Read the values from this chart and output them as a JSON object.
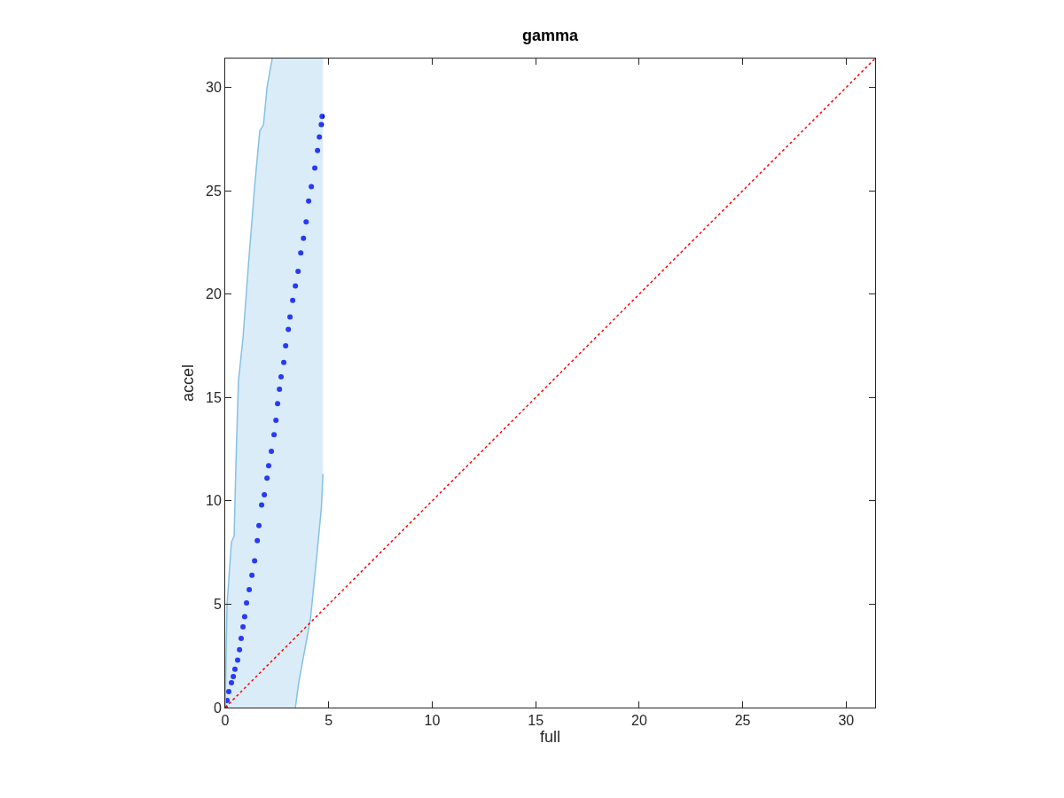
{
  "chart_data": {
    "type": "scatter",
    "title": "gamma",
    "xlabel": "full",
    "ylabel": "accel",
    "xlim": [
      0,
      31.4
    ],
    "ylim": [
      0,
      31.4
    ],
    "xticks": [
      0,
      5,
      10,
      15,
      20,
      25,
      30
    ],
    "yticks": [
      0,
      5,
      10,
      15,
      20,
      25,
      30
    ],
    "series": [
      {
        "type": "scatter",
        "marker": "circle",
        "color": "#0000ff",
        "x": [
          0,
          0.09,
          0.17,
          0.3,
          0.39,
          0.47,
          0.6,
          0.69,
          0.77,
          0.86,
          0.94,
          1.03,
          1.16,
          1.29,
          1.42,
          1.55,
          1.63,
          1.76,
          1.89,
          2.02,
          2.1,
          2.23,
          2.36,
          2.45,
          2.53,
          2.62,
          2.7,
          2.83,
          2.92,
          3.05,
          3.13,
          3.26,
          3.39,
          3.52,
          3.65,
          3.78,
          3.91,
          4.03,
          4.16,
          4.33,
          4.46,
          4.55,
          4.64,
          4.68
        ],
        "values": [
          0,
          0.34,
          0.77,
          1.2,
          1.5,
          1.85,
          2.3,
          2.8,
          3.35,
          3.9,
          4.4,
          5.06,
          5.7,
          6.4,
          7.1,
          8.07,
          8.8,
          9.8,
          10.3,
          11.1,
          11.7,
          12.4,
          13.2,
          13.9,
          14.7,
          15.4,
          16.0,
          16.7,
          17.5,
          18.3,
          18.9,
          19.7,
          20.4,
          21.1,
          22.0,
          22.7,
          23.5,
          24.5,
          25.2,
          26.1,
          26.95,
          27.6,
          28.2,
          28.6
        ]
      },
      {
        "type": "line",
        "color": "#85c1e6",
        "x": [
          0,
          0.09,
          0.3,
          0.43,
          0.52,
          0.64,
          0.86,
          1.12,
          1.42,
          1.67,
          1.85,
          2.02,
          2.27,
          2.6,
          3.0,
          3.39,
          3.55,
          4.12,
          4.45,
          4.65,
          4.72
        ],
        "values": [
          null,
          null,
          null,
          null,
          null,
          null,
          null,
          null,
          null,
          null,
          null,
          null,
          null,
          null,
          null,
          null,
          null,
          null,
          null,
          null,
          null
        ],
        "lower": [
          0,
          0,
          0,
          0,
          0,
          0,
          0,
          0,
          0,
          0,
          0,
          0,
          0,
          0,
          0,
          0,
          1.2,
          4.3,
          7.6,
          9.7,
          11.3
        ],
        "upper": [
          0,
          5.0,
          8.0,
          8.3,
          11.9,
          15.8,
          17.9,
          21.4,
          25.2,
          27.9,
          28.2,
          30.0,
          31.4,
          31.4,
          31.4,
          31.4,
          31.4,
          31.4,
          31.4,
          31.4,
          31.4
        ]
      },
      {
        "type": "line",
        "color": "#85c1e6",
        "marker": "none",
        "x": [
          0,
          0.04,
          0.09,
          0.3,
          0.43,
          0.52,
          0.64,
          0.86,
          1.12,
          1.42,
          1.67,
          1.85,
          2.02,
          2.27
        ],
        "values": [
          0,
          2.5,
          5.0,
          8.0,
          8.3,
          11.9,
          15.8,
          17.9,
          21.4,
          25.2,
          27.9,
          28.2,
          30.0,
          31.4
        ]
      },
      {
        "type": "line",
        "color": "#85c1e6",
        "marker": "none",
        "x": [
          3.39,
          3.55,
          4.12,
          4.45,
          4.65,
          4.72
        ],
        "values": [
          0,
          1.2,
          4.3,
          7.6,
          9.7,
          11.3
        ]
      },
      {
        "type": "line",
        "color": "#ff0000",
        "line_style": "dotted",
        "marker": "none",
        "x": [
          0,
          31.4
        ],
        "values": [
          0,
          31.4
        ]
      }
    ]
  }
}
